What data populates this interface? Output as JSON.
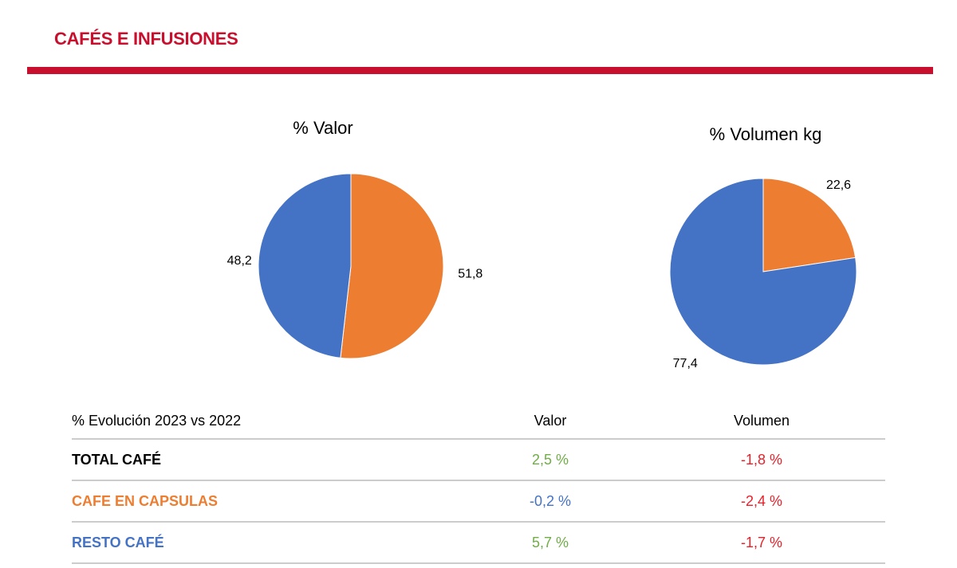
{
  "header": {
    "title": "CAFÉS E INFUSIONES"
  },
  "chart_data": [
    {
      "type": "pie",
      "title": "% Valor",
      "series": [
        {
          "values": [
            51.8,
            48.2
          ],
          "colors": [
            "#ed7d31",
            "#4472c4"
          ],
          "labels": [
            "51,8",
            "48,2"
          ]
        }
      ]
    },
    {
      "type": "pie",
      "title": "% Volumen kg",
      "series": [
        {
          "values": [
            22.6,
            77.4
          ],
          "colors": [
            "#ed7d31",
            "#4472c4"
          ],
          "labels": [
            "22,6",
            "77,4"
          ]
        }
      ]
    }
  ],
  "table": {
    "columns": [
      "% Evolución 2023 vs 2022",
      "Valor",
      "Volumen"
    ],
    "rows": [
      {
        "label": "TOTAL CAFÉ",
        "valor": "2,5 %",
        "volumen": "-1,8 %",
        "label_color": "#000000",
        "valor_color": "#70ad47",
        "volumen_color": "#e8202a"
      },
      {
        "label": "CAFE EN CAPSULAS",
        "valor": "-0,2 %",
        "volumen": "-2,4 %",
        "label_color": "#ed7d31",
        "valor_color": "#4472c4",
        "volumen_color": "#e8202a"
      },
      {
        "label": "RESTO CAFÉ",
        "valor": "5,7 %",
        "volumen": "-1,7 %",
        "label_color": "#4472c4",
        "valor_color": "#70ad47",
        "volumen_color": "#e8202a"
      }
    ]
  }
}
